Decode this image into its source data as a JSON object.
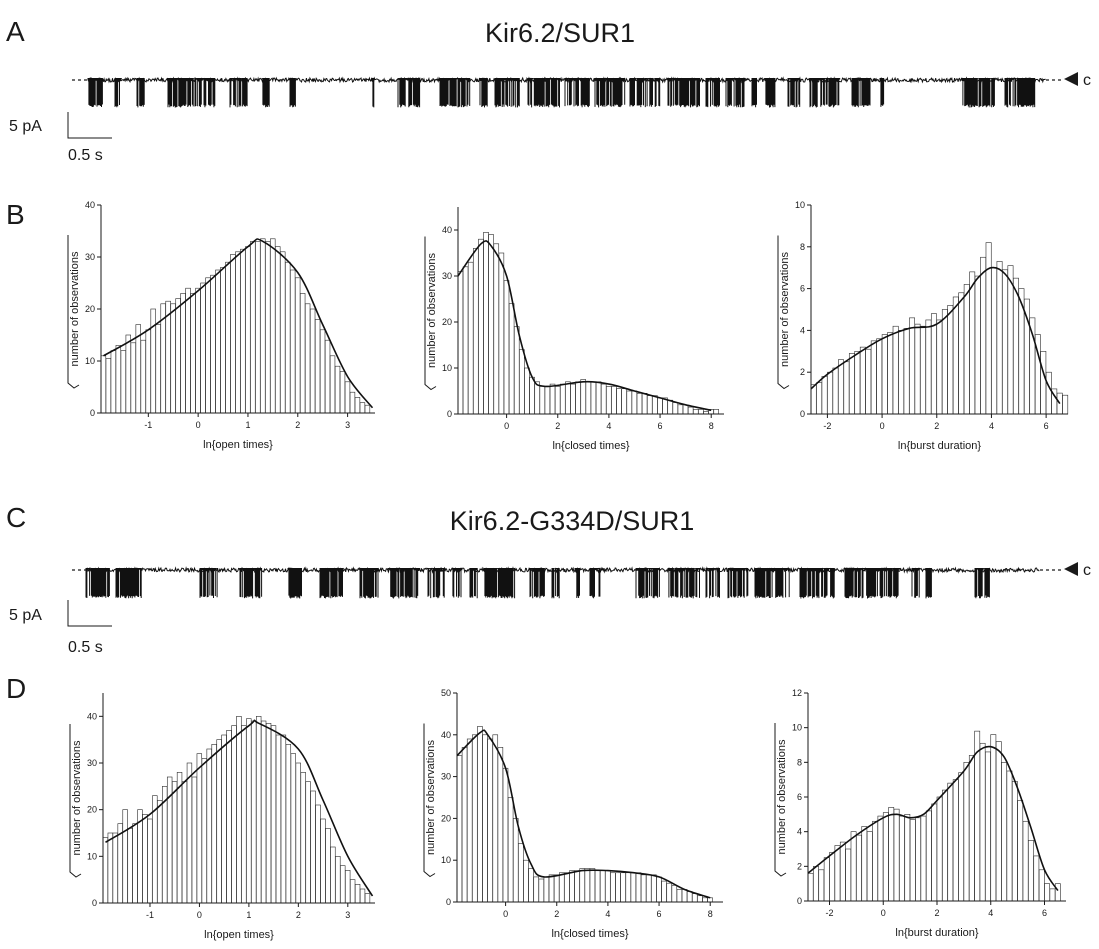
{
  "panels": {
    "A": {
      "letter": "A",
      "title": "Kir6.2/SUR1",
      "state_label": "c"
    },
    "B": {
      "letter": "B"
    },
    "C": {
      "letter": "C",
      "title": "Kir6.2-G334D/SUR1",
      "state_label": "c"
    },
    "D": {
      "letter": "D"
    }
  },
  "scale_bar": {
    "current": "5 pA",
    "time": "0.5 s"
  },
  "colors": {
    "ink": "#1a1a1a",
    "bar_fill": "#ffffff"
  },
  "chart_data": [
    {
      "id": "B-open",
      "type": "bar",
      "title": "",
      "xlabel": "ln{open times}",
      "ylabel": "√number of observations",
      "xlim": [
        -1.95,
        3.55
      ],
      "ylim": [
        0,
        40
      ],
      "xticks": [
        -1,
        0,
        1,
        2,
        3
      ],
      "yticks": [
        0,
        10,
        20,
        30,
        40
      ],
      "fit": {
        "x": [
          -1.9,
          -1,
          0,
          1,
          1.3,
          2,
          2.5,
          3,
          3.5
        ],
        "y": [
          11,
          16,
          23.5,
          32,
          33,
          27,
          17,
          7,
          1
        ]
      },
      "bars": {
        "x": [
          -1.9,
          -1.8,
          -1.7,
          -1.6,
          -1.5,
          -1.4,
          -1.3,
          -1.2,
          -1.1,
          -1.0,
          -0.9,
          -0.8,
          -0.7,
          -0.6,
          -0.5,
          -0.4,
          -0.3,
          -0.2,
          -0.1,
          0.0,
          0.1,
          0.2,
          0.3,
          0.4,
          0.5,
          0.6,
          0.7,
          0.8,
          0.9,
          1.0,
          1.1,
          1.2,
          1.3,
          1.4,
          1.5,
          1.6,
          1.7,
          1.8,
          1.9,
          2.0,
          2.1,
          2.2,
          2.3,
          2.4,
          2.5,
          2.6,
          2.7,
          2.8,
          2.9,
          3.0,
          3.1,
          3.2,
          3.3,
          3.4
        ],
        "y": [
          11,
          10.5,
          12,
          13,
          12,
          15,
          13.5,
          17,
          14,
          16,
          20,
          17,
          21,
          21.5,
          21,
          22,
          23,
          24,
          23,
          24,
          25,
          26,
          26.5,
          27.5,
          28,
          29,
          30.5,
          31,
          31.5,
          32,
          33,
          33,
          33.5,
          33,
          33.5,
          32,
          31,
          29,
          27.5,
          26,
          23,
          21,
          20,
          18,
          16,
          14,
          11,
          9,
          8,
          6,
          4,
          3,
          2,
          1.5
        ]
      }
    },
    {
      "id": "B-closed",
      "type": "bar",
      "title": "",
      "xlabel": "ln{closed times}",
      "ylabel": "√number of observations",
      "xlim": [
        -1.9,
        8.5
      ],
      "ylim": [
        0,
        45
      ],
      "xticks": [
        0,
        2,
        4,
        6,
        8
      ],
      "yticks": [
        0,
        10,
        20,
        30,
        40
      ],
      "fit": {
        "x": [
          -1.9,
          -1,
          -0.6,
          0,
          0.5,
          1,
          1.5,
          3,
          4,
          5,
          6,
          7,
          8
        ],
        "y": [
          30,
          37,
          36.5,
          30,
          17,
          8,
          6,
          7,
          6.5,
          5,
          3.5,
          2,
          0.8
        ]
      },
      "bars": {
        "x": [
          -1.8,
          -1.6,
          -1.4,
          -1.2,
          -1.0,
          -0.8,
          -0.6,
          -0.4,
          -0.2,
          0.0,
          0.2,
          0.4,
          0.6,
          0.8,
          1.0,
          1.2,
          1.4,
          1.6,
          1.8,
          2.0,
          2.2,
          2.4,
          2.6,
          2.8,
          3.0,
          3.2,
          3.4,
          3.6,
          3.8,
          4.0,
          4.2,
          4.4,
          4.6,
          4.8,
          5.0,
          5.2,
          5.4,
          5.6,
          5.8,
          6.0,
          6.2,
          6.4,
          6.6,
          6.8,
          7.0,
          7.2,
          7.4,
          7.6,
          7.8,
          8.0,
          8.2
        ],
        "y": [
          31,
          32,
          33,
          36,
          38,
          39.5,
          39,
          37,
          35,
          29,
          24,
          19,
          14,
          10,
          8,
          7,
          6,
          6,
          6.5,
          6,
          6.5,
          7,
          6.5,
          7,
          7.5,
          7,
          7,
          7,
          6.5,
          6,
          6,
          5.5,
          5.5,
          5,
          5,
          4.5,
          4.5,
          4,
          4,
          3.5,
          3.5,
          3,
          2.5,
          2,
          2,
          1.5,
          1,
          1,
          0.5,
          1,
          1
        ]
      }
    },
    {
      "id": "B-burst",
      "type": "bar",
      "title": "",
      "xlabel": "ln{burst duration}",
      "ylabel": "√number of observations",
      "xlim": [
        -2.6,
        6.8
      ],
      "ylim": [
        0,
        10
      ],
      "xticks": [
        -2,
        0,
        2,
        4,
        6
      ],
      "yticks": [
        0,
        2,
        4,
        6,
        8,
        10
      ],
      "fit": {
        "x": [
          -2.6,
          -2,
          -1,
          0,
          1,
          2,
          3,
          3.5,
          4,
          4.5,
          5,
          5.5,
          6,
          6.5
        ],
        "y": [
          1.2,
          1.9,
          2.8,
          3.6,
          4.1,
          4.3,
          5.6,
          6.5,
          7,
          6.7,
          5.6,
          3.8,
          1.6,
          0.5
        ]
      },
      "bars": {
        "x": [
          -2.5,
          -2.3,
          -2.1,
          -1.9,
          -1.7,
          -1.5,
          -1.3,
          -1.1,
          -0.9,
          -0.7,
          -0.5,
          -0.3,
          -0.1,
          0.1,
          0.3,
          0.5,
          0.7,
          0.9,
          1.1,
          1.3,
          1.5,
          1.7,
          1.9,
          2.1,
          2.3,
          2.5,
          2.7,
          2.9,
          3.1,
          3.3,
          3.5,
          3.7,
          3.9,
          4.1,
          4.3,
          4.5,
          4.7,
          4.9,
          5.1,
          5.3,
          5.5,
          5.7,
          5.9,
          6.1,
          6.3,
          6.5,
          6.7
        ],
        "y": [
          1.4,
          1.5,
          1.8,
          2.0,
          2.2,
          2.6,
          2.5,
          2.9,
          3.0,
          3.2,
          3.1,
          3.5,
          3.6,
          3.8,
          3.9,
          4.2,
          4.0,
          4.1,
          4.6,
          4.3,
          4.2,
          4.5,
          4.8,
          4.5,
          5.0,
          5.2,
          5.6,
          5.8,
          6.2,
          6.8,
          6.6,
          7.5,
          8.2,
          7.0,
          7.3,
          6.9,
          7.1,
          6.5,
          6.0,
          5.5,
          4.6,
          3.8,
          3.0,
          2.0,
          1.2,
          1.0,
          0.9
        ]
      }
    },
    {
      "id": "D-open",
      "type": "bar",
      "title": "",
      "xlabel": "ln{open times}",
      "ylabel": "√number of observations",
      "xlim": [
        -1.95,
        3.55
      ],
      "ylim": [
        0,
        45
      ],
      "xticks": [
        -1,
        0,
        1,
        2,
        3
      ],
      "yticks": [
        0,
        10,
        20,
        30,
        40
      ],
      "fit": {
        "x": [
          -1.9,
          -1,
          0,
          1,
          1.2,
          2,
          2.5,
          3,
          3.5
        ],
        "y": [
          13,
          19,
          29,
          38,
          38.5,
          33,
          22,
          10,
          1.5
        ]
      },
      "bars": {
        "x": [
          -1.9,
          -1.8,
          -1.7,
          -1.6,
          -1.5,
          -1.4,
          -1.3,
          -1.2,
          -1.1,
          -1.0,
          -0.9,
          -0.8,
          -0.7,
          -0.6,
          -0.5,
          -0.4,
          -0.3,
          -0.2,
          -0.1,
          0.0,
          0.1,
          0.2,
          0.3,
          0.4,
          0.5,
          0.6,
          0.7,
          0.8,
          0.9,
          1.0,
          1.1,
          1.2,
          1.3,
          1.4,
          1.5,
          1.6,
          1.7,
          1.8,
          1.9,
          2.0,
          2.1,
          2.2,
          2.3,
          2.4,
          2.5,
          2.6,
          2.7,
          2.8,
          2.9,
          3.0,
          3.1,
          3.2,
          3.3,
          3.4
        ],
        "y": [
          14,
          15,
          15,
          17,
          20,
          16,
          17,
          20,
          19,
          18,
          23,
          22,
          25,
          27,
          26,
          28,
          26,
          30,
          27,
          32,
          31,
          33,
          34,
          35,
          36,
          37,
          38,
          40,
          38,
          39.5,
          39,
          40,
          39,
          38.5,
          38,
          36,
          36,
          34,
          32,
          30,
          28,
          26,
          24,
          21,
          18,
          16,
          12,
          10,
          8,
          7,
          5,
          4,
          3,
          2
        ]
      }
    },
    {
      "id": "D-closed",
      "type": "bar",
      "title": "",
      "xlabel": "ln{closed times}",
      "ylabel": "√number of observations",
      "xlim": [
        -1.9,
        8.5
      ],
      "ylim": [
        0,
        50
      ],
      "xticks": [
        0,
        2,
        4,
        6,
        8
      ],
      "yticks": [
        0,
        10,
        20,
        30,
        40,
        50
      ],
      "fit": {
        "x": [
          -1.9,
          -1,
          -0.7,
          0,
          0.5,
          1,
          1.5,
          3,
          4,
          5,
          6,
          7,
          8
        ],
        "y": [
          35,
          40.5,
          40,
          32,
          18,
          9,
          6,
          7.5,
          7.5,
          7,
          6,
          3,
          1
        ]
      },
      "bars": {
        "x": [
          -1.8,
          -1.6,
          -1.4,
          -1.2,
          -1.0,
          -0.8,
          -0.6,
          -0.4,
          -0.2,
          0.0,
          0.2,
          0.4,
          0.6,
          0.8,
          1.0,
          1.2,
          1.4,
          1.6,
          1.8,
          2.0,
          2.2,
          2.4,
          2.6,
          2.8,
          3.0,
          3.2,
          3.4,
          3.6,
          3.8,
          4.0,
          4.2,
          4.4,
          4.6,
          4.8,
          5.0,
          5.2,
          5.4,
          5.6,
          5.8,
          6.0,
          6.2,
          6.4,
          6.6,
          6.8,
          7.0,
          7.2,
          7.4,
          7.6,
          7.8,
          8.0
        ],
        "y": [
          35,
          37,
          39,
          40,
          42,
          40,
          39,
          40,
          37,
          32,
          25,
          20,
          14,
          10,
          8,
          6,
          5.5,
          6,
          6.5,
          6.5,
          7,
          7,
          7.5,
          7.5,
          8,
          8,
          8,
          7.5,
          7.5,
          7.5,
          7,
          7,
          7,
          7,
          7,
          7,
          6.5,
          6.5,
          6.5,
          6,
          5,
          4.5,
          4,
          3,
          3,
          2.5,
          2,
          1.5,
          1,
          1
        ]
      }
    },
    {
      "id": "D-burst",
      "type": "bar",
      "title": "",
      "xlabel": "ln{burst duration}",
      "ylabel": "√number of observations",
      "xlim": [
        -2.8,
        6.8
      ],
      "ylim": [
        0,
        12
      ],
      "xticks": [
        -2,
        0,
        2,
        4,
        6
      ],
      "yticks": [
        0,
        2,
        4,
        6,
        8,
        10,
        12
      ],
      "fit": {
        "x": [
          -2.8,
          -2,
          -1,
          0,
          0.5,
          1,
          1.5,
          2,
          3,
          3.5,
          4,
          4.5,
          5,
          5.5,
          6,
          6.5
        ],
        "y": [
          1.6,
          2.6,
          3.8,
          4.8,
          5,
          4.8,
          5,
          5.8,
          7.5,
          8.6,
          8.9,
          8.3,
          6.5,
          4.2,
          1.8,
          0.6
        ]
      },
      "bars": {
        "x": [
          -2.7,
          -2.5,
          -2.3,
          -2.1,
          -1.9,
          -1.7,
          -1.5,
          -1.3,
          -1.1,
          -0.9,
          -0.7,
          -0.5,
          -0.3,
          -0.1,
          0.1,
          0.3,
          0.5,
          0.7,
          0.9,
          1.1,
          1.3,
          1.5,
          1.7,
          1.9,
          2.1,
          2.3,
          2.5,
          2.7,
          2.9,
          3.1,
          3.3,
          3.5,
          3.7,
          3.9,
          4.1,
          4.3,
          4.5,
          4.7,
          4.9,
          5.1,
          5.3,
          5.5,
          5.7,
          5.9,
          6.1,
          6.3,
          6.5
        ],
        "y": [
          1.6,
          2.0,
          1.8,
          2.5,
          2.8,
          3.2,
          3.4,
          3.0,
          4.0,
          3.8,
          4.3,
          4.0,
          4.6,
          4.9,
          5.1,
          5.4,
          5.3,
          4.9,
          5.0,
          4.7,
          4.8,
          4.9,
          5.2,
          5.6,
          6.0,
          6.4,
          6.8,
          7.0,
          7.4,
          8.0,
          8.4,
          9.8,
          9.1,
          8.6,
          9.6,
          9.2,
          8.0,
          7.5,
          6.9,
          5.8,
          4.6,
          3.5,
          2.6,
          1.8,
          1.0,
          0.7,
          1.0
        ]
      }
    }
  ]
}
